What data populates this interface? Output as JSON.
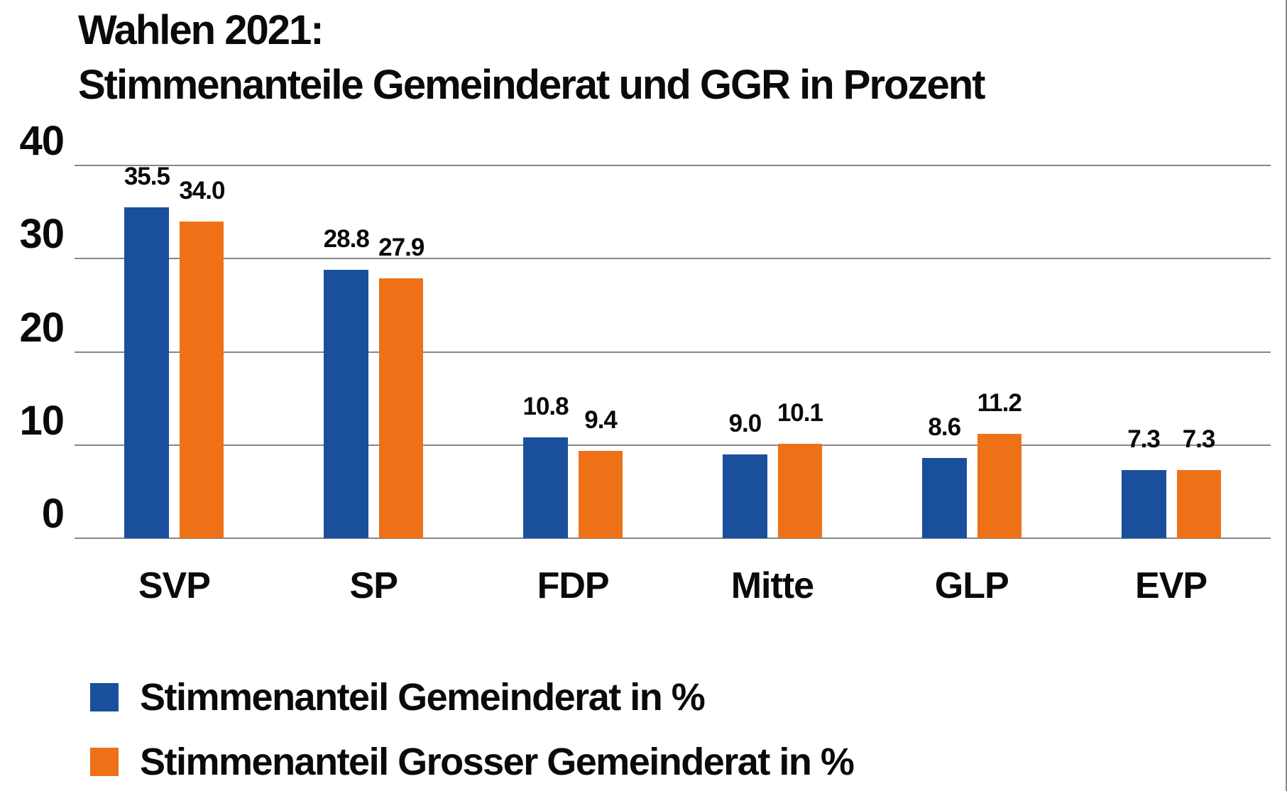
{
  "title": {
    "line1": "Wahlen 2021:",
    "line2": "Stimmenanteile Gemeinderat und GGR in Prozent"
  },
  "chart_data": {
    "type": "bar",
    "title": "Wahlen 2021: Stimmenanteile Gemeinderat und GGR in Prozent",
    "categories": [
      "SVP",
      "SP",
      "FDP",
      "Mitte",
      "GLP",
      "EVP"
    ],
    "series": [
      {
        "name": "Stimmenanteil Gemeinderat in %",
        "color": "#1A4F9C",
        "values": [
          35.5,
          28.8,
          10.8,
          9.0,
          8.6,
          7.3
        ]
      },
      {
        "name": "Stimmenanteil Grosser Gemeinderat in %",
        "color": "#EE7118",
        "values": [
          34.0,
          27.9,
          9.4,
          10.1,
          11.2,
          7.3
        ]
      }
    ],
    "ylim": [
      0,
      40
    ],
    "yticks": [
      0,
      10,
      20,
      30,
      40
    ],
    "grid": true,
    "gridline_color": "#878787",
    "value_labels_shown": true,
    "value_label_decimals": 1,
    "legend_position": "bottom-left"
  }
}
